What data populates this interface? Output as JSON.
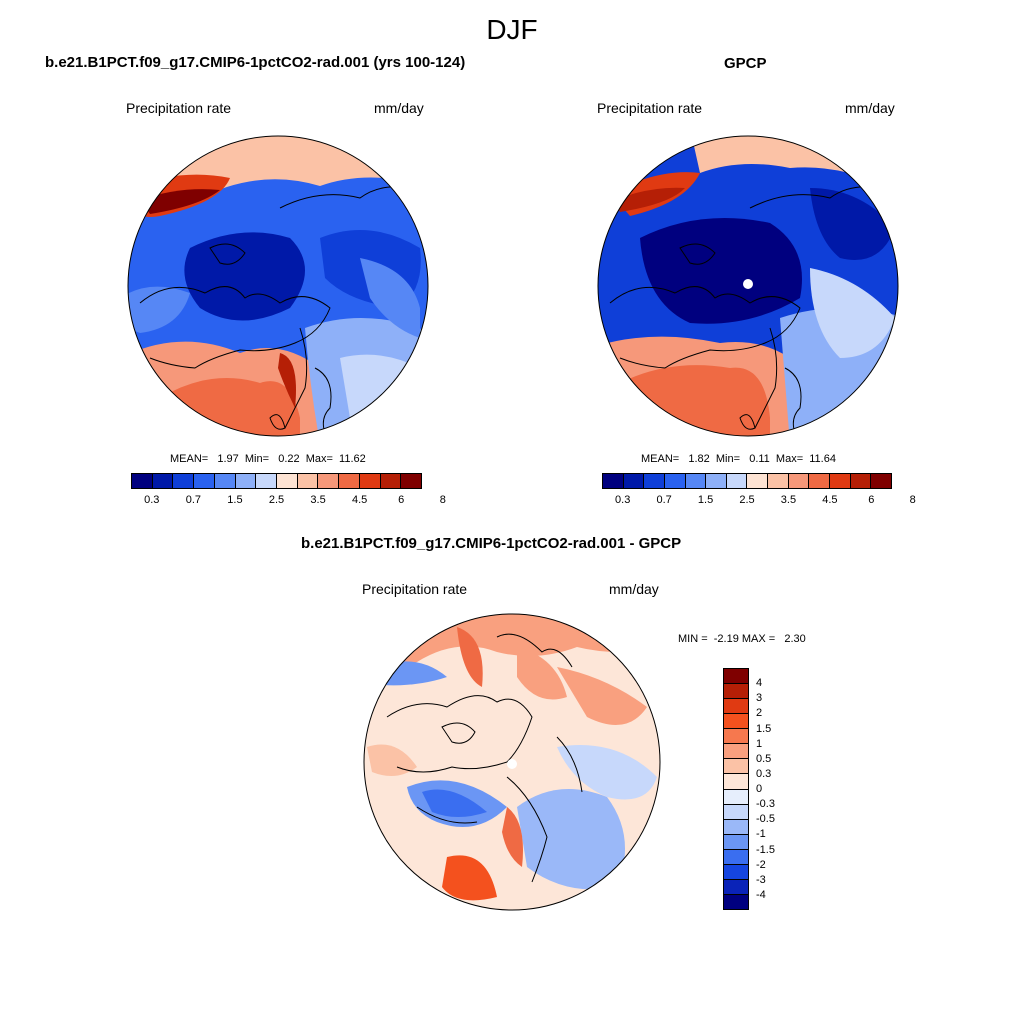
{
  "title": "DJF",
  "panels": [
    {
      "title": "b.e21.B1PCT.f09_g17.CMIP6-1pctCO2-rad.001 (yrs 100-124)",
      "variable": "Precipitation rate",
      "units": "mm/day",
      "stats": "MEAN=   1.97  Min=   0.22  Max=  11.62"
    },
    {
      "title": "GPCP",
      "variable": "Precipitation rate",
      "units": "mm/day",
      "stats": "MEAN=   1.82  Min=   0.11  Max=  11.64"
    },
    {
      "title": "b.e21.B1PCT.f09_g17.CMIP6-1pctCO2-rad.001 - GPCP",
      "variable": "Precipitation rate",
      "units": "mm/day",
      "stats": "MIN =  -2.19 MAX =   2.30"
    }
  ],
  "colorbar_abs": {
    "labels": [
      "0.3",
      "0.7",
      "1.5",
      "2.5",
      "3.5",
      "4.5",
      "6",
      "8"
    ],
    "colors": [
      "#00007f",
      "#0019a8",
      "#0f3fd8",
      "#2a62f0",
      "#5687f5",
      "#8eb0f8",
      "#c7d8fb",
      "#fde3d3",
      "#fbc2a6",
      "#f6987a",
      "#ef6a44",
      "#e03a12",
      "#b51f06",
      "#7f0000"
    ]
  },
  "colorbar_diff": {
    "labels": [
      "4",
      "3",
      "2",
      "1.5",
      "1",
      "0.5",
      "0.3",
      "0",
      "-0.3",
      "-0.5",
      "-1",
      "-1.5",
      "-2",
      "-3",
      "-4"
    ],
    "colors": [
      "#7f0000",
      "#b51f06",
      "#e03a12",
      "#f4511e",
      "#f6784e",
      "#f9a07f",
      "#fbc2a6",
      "#fde6d8",
      "#e6eefc",
      "#c7d8fb",
      "#9ab8f8",
      "#6b96f4",
      "#3a6ef0",
      "#1545e0",
      "#0a23b8",
      "#00007f"
    ]
  }
}
